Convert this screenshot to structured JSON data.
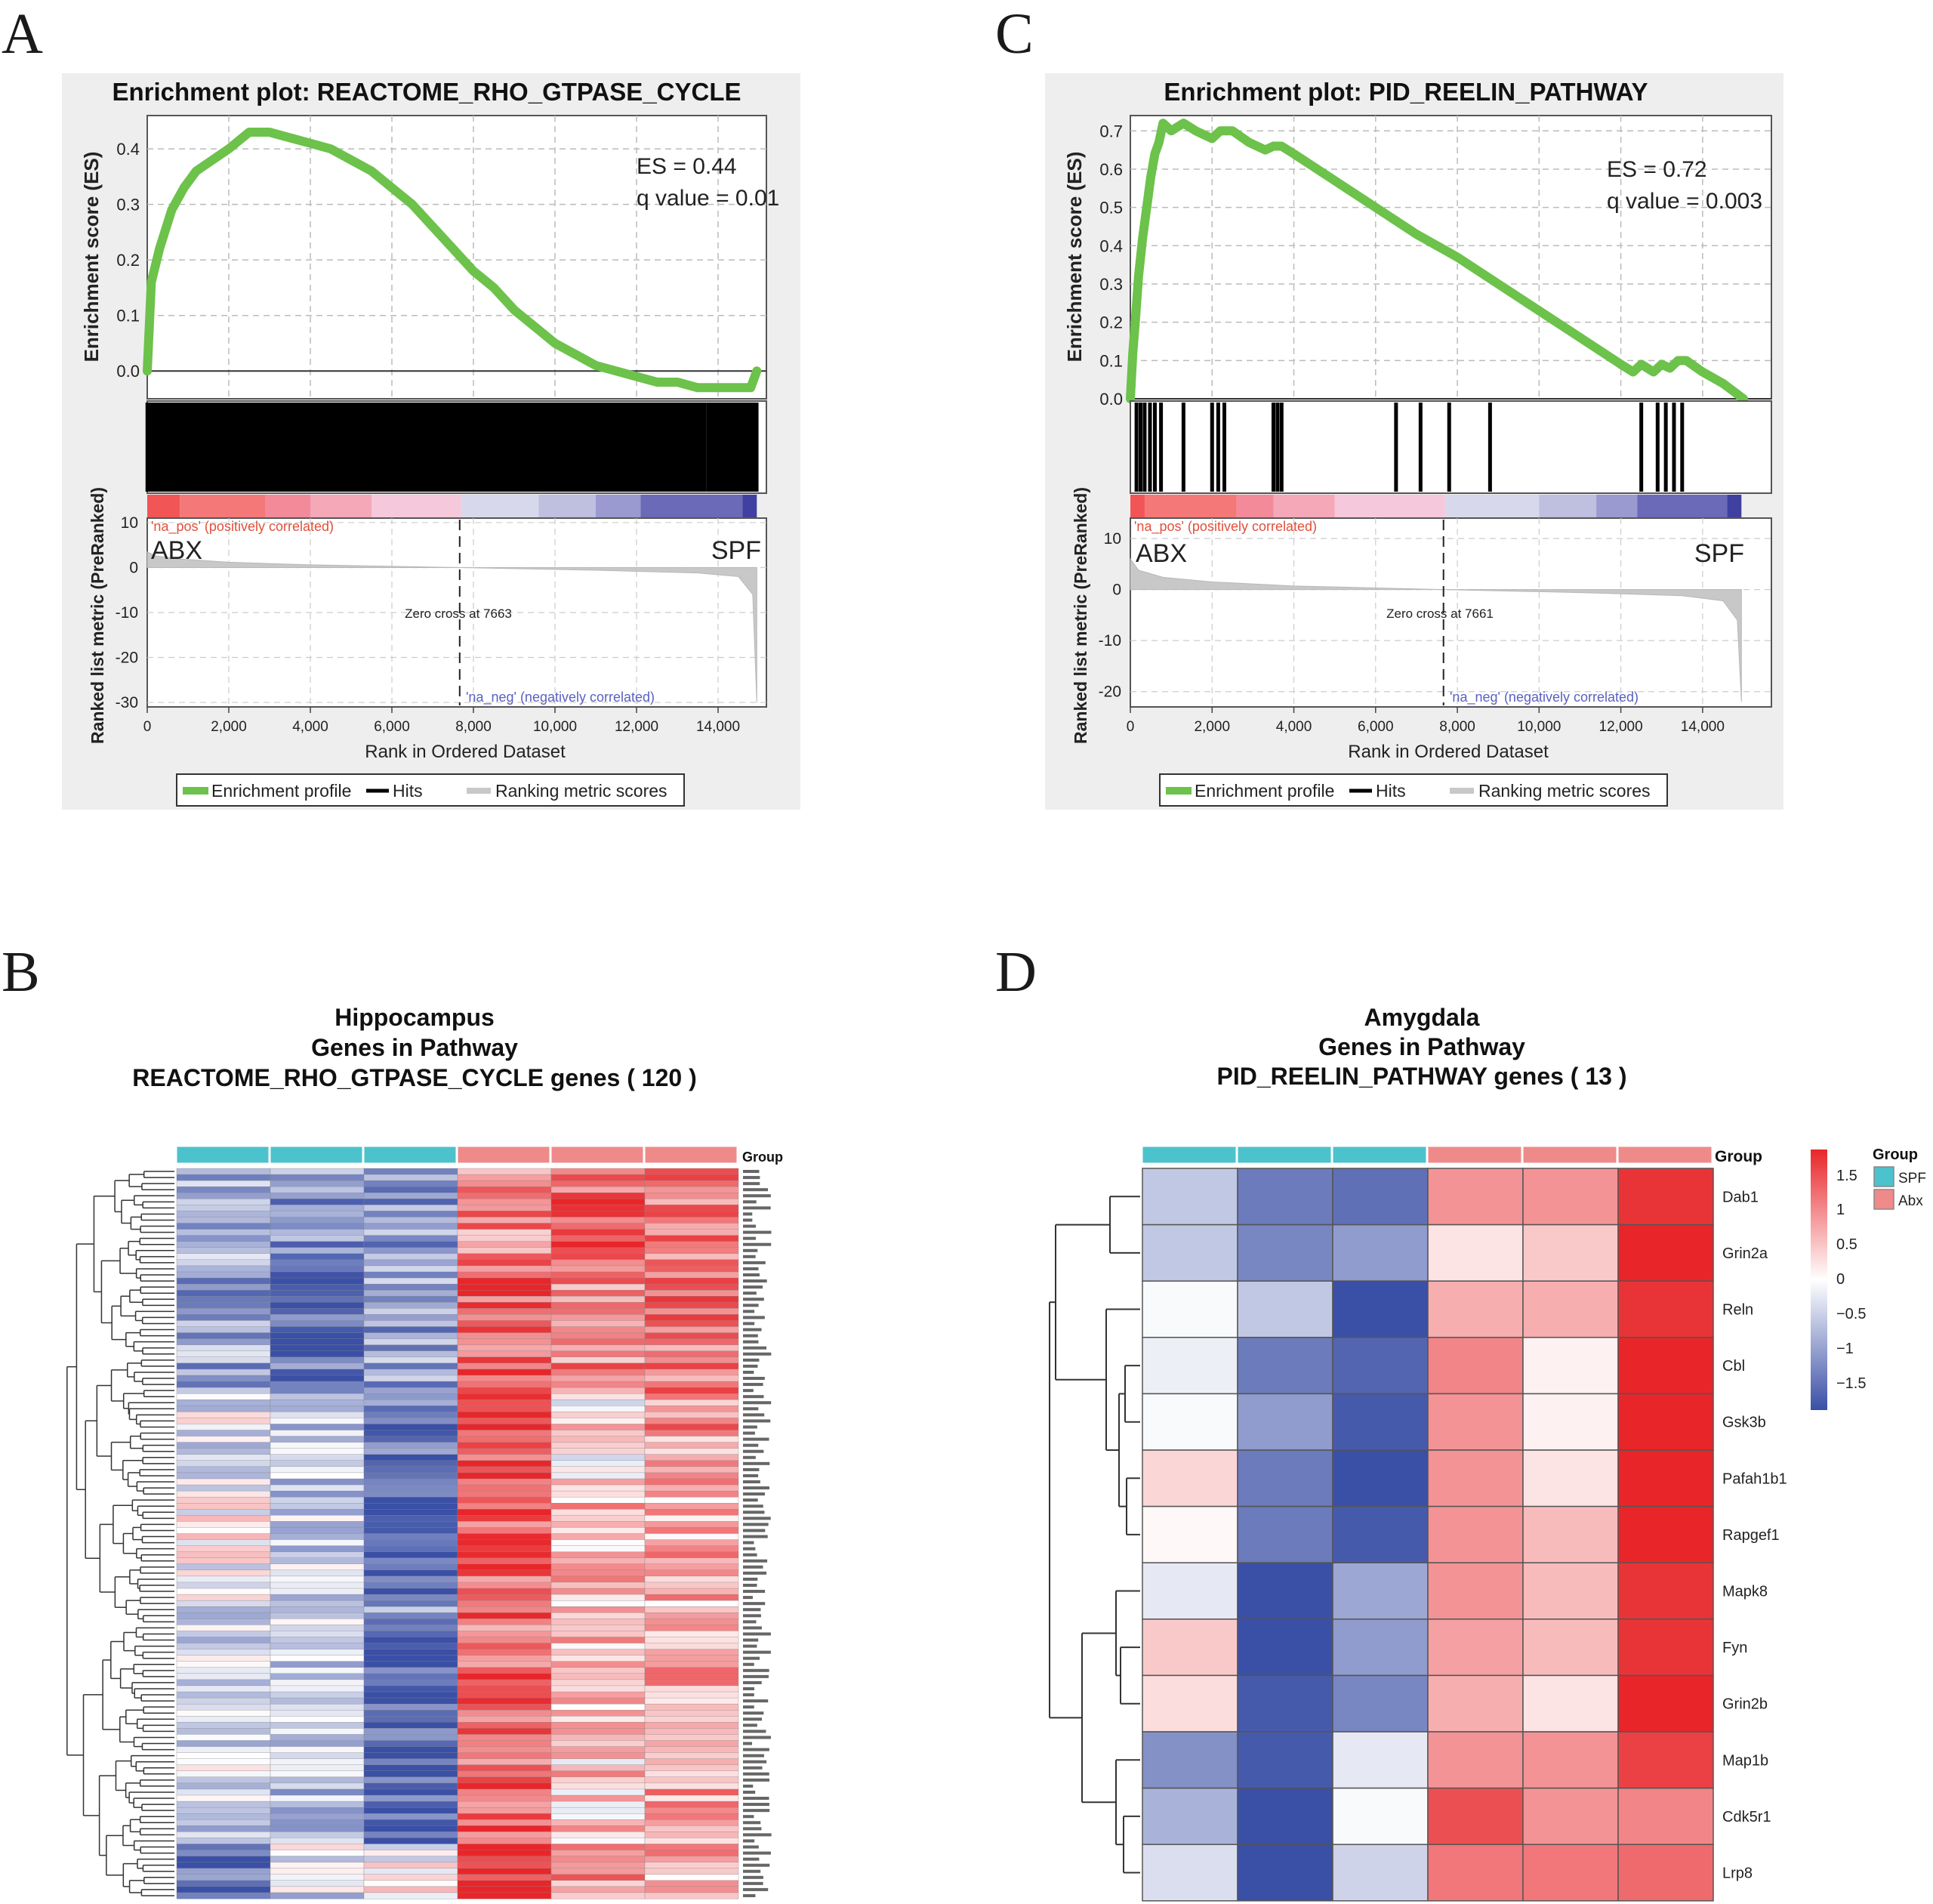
{
  "panels": {
    "A": {
      "letter": "A",
      "title": "Enrichment plot: REACTOME_RHO_GTPASE_CYCLE",
      "es_label": "ES = 0.44",
      "q_label": "q value = 0.01",
      "pos_label": "'na_pos' (positively correlated)",
      "neg_label": "'na_neg' (negatively correlated)",
      "left_group": "ABX",
      "right_group": "SPF",
      "zero_cross_label": "Zero cross at 7663",
      "es_ylabel": "Enrichment score (ES)",
      "rank_ylabel": "Ranked list metric (PreRanked)",
      "xlabel": "Rank in Ordered Dataset",
      "legend": [
        "Enrichment profile",
        "Hits",
        "Ranking metric scores"
      ]
    },
    "C": {
      "letter": "C",
      "title": "Enrichment plot: PID_REELIN_PATHWAY",
      "es_label": "ES = 0.72",
      "q_label": "q value = 0.003",
      "pos_label": "'na_pos' (positively correlated)",
      "neg_label": "'na_neg' (negatively correlated)",
      "left_group": "ABX",
      "right_group": "SPF",
      "zero_cross_label": "Zero cross at 7661",
      "es_ylabel": "Enrichment score (ES)",
      "rank_ylabel": "Ranked list metric (PreRanked)",
      "xlabel": "Rank in Ordered Dataset",
      "legend": [
        "Enrichment profile",
        "Hits",
        "Ranking metric scores"
      ]
    },
    "B": {
      "letter": "B",
      "title_lines": [
        "Hippocampus",
        "Genes  in Pathway",
        "REACTOME_RHO_GTPASE_CYCLE genes ( 120 )"
      ],
      "group_label": "Group"
    },
    "D": {
      "letter": "D",
      "title_lines": [
        "Amygdala",
        "Genes  in Pathway",
        "PID_REELIN_PATHWAY genes ( 13 )"
      ],
      "group_label": "Group",
      "legend_title": "Group",
      "legend_items": [
        "SPF",
        "Abx"
      ],
      "scale_labels": [
        "1.5",
        "1",
        "0.5",
        "0",
        "−0.5",
        "−1",
        "−1.5"
      ]
    }
  },
  "colors": {
    "enrichment_line": "#6cc24a",
    "hit": "#000000",
    "metric_fill": "#c8c8c8",
    "spf": "#4cc2cc",
    "abx": "#ef8a8a",
    "high": "#e8262a",
    "mid": "#ffffff",
    "low": "#3a4fa6",
    "pos_text": "#e0503a",
    "neg_text": "#5a62c0"
  },
  "chart_data": [
    {
      "id": "A",
      "type": "line",
      "title": "Enrichment plot: REACTOME_RHO_GTPASE_CYCLE",
      "xlabel": "Rank in Ordered Dataset",
      "ylabel": "Enrichment score (ES)",
      "xlim": [
        0,
        15000
      ],
      "ylim": [
        -0.05,
        0.46
      ],
      "yticks": [
        0.0,
        0.1,
        0.2,
        0.3,
        0.4
      ],
      "xticks": [
        0,
        2000,
        4000,
        6000,
        8000,
        10000,
        12000,
        14000
      ],
      "xtick_labels": [
        "0",
        "2,000",
        "4,000",
        "6,000",
        "8,000",
        "10,000",
        "12,000",
        "14,000"
      ],
      "es_curve": {
        "x": [
          0,
          100,
          300,
          600,
          900,
          1200,
          1600,
          2000,
          2500,
          3000,
          3500,
          4000,
          4500,
          5000,
          5500,
          6000,
          6500,
          7000,
          7500,
          8000,
          8500,
          9000,
          9500,
          10000,
          10500,
          11000,
          11500,
          12000,
          12500,
          13000,
          13500,
          14000,
          14500,
          14800,
          14950
        ],
        "y": [
          0.0,
          0.16,
          0.22,
          0.29,
          0.33,
          0.36,
          0.38,
          0.4,
          0.43,
          0.43,
          0.42,
          0.41,
          0.4,
          0.38,
          0.36,
          0.33,
          0.3,
          0.26,
          0.22,
          0.18,
          0.15,
          0.11,
          0.08,
          0.05,
          0.03,
          0.01,
          0.0,
          -0.01,
          -0.02,
          -0.02,
          -0.03,
          -0.03,
          -0.03,
          -0.03,
          0.0
        ]
      },
      "rank_metric": {
        "ylim": [
          -31,
          11
        ],
        "yticks": [
          10,
          0,
          -10,
          -20,
          -30
        ],
        "x": [
          0,
          200,
          800,
          2000,
          4000,
          7663,
          11000,
          13500,
          14500,
          14850,
          14950
        ],
        "y": [
          3.5,
          2.6,
          1.9,
          1.2,
          0.6,
          0.0,
          -0.6,
          -1.2,
          -2.0,
          -6.0,
          -30.0
        ]
      },
      "zero_cross": 7663,
      "color_bar": [
        "#f25555",
        "#f57878",
        "#f28a9a",
        "#f4a8b8",
        "#f6c8dc",
        "#d8d8ec",
        "#bfbfe0",
        "#9a9ad0",
        "#6a6ab8",
        "#4040a0"
      ],
      "color_bar_stops": [
        0,
        800,
        2900,
        4000,
        5500,
        7700,
        9600,
        11000,
        12100,
        14600,
        14950
      ],
      "hit_density": "dense"
    },
    {
      "id": "C",
      "type": "line",
      "title": "Enrichment plot: PID_REELIN_PATHWAY",
      "xlabel": "Rank in Ordered Dataset",
      "ylabel": "Enrichment score (ES)",
      "xlim": [
        0,
        15000
      ],
      "ylim": [
        0.0,
        0.74
      ],
      "yticks": [
        0.0,
        0.1,
        0.2,
        0.3,
        0.4,
        0.5,
        0.6,
        0.7
      ],
      "xticks": [
        0,
        2000,
        4000,
        6000,
        8000,
        10000,
        12000,
        14000
      ],
      "xtick_labels": [
        "0",
        "2,000",
        "4,000",
        "6,000",
        "8,000",
        "10,000",
        "12,000",
        "14,000"
      ],
      "es_curve": {
        "x": [
          0,
          60,
          120,
          200,
          300,
          400,
          500,
          600,
          700,
          800,
          1000,
          1300,
          1600,
          2000,
          2200,
          2500,
          2900,
          3300,
          3500,
          3700,
          4000,
          5000,
          6000,
          7000,
          8000,
          9000,
          10000,
          11000,
          12000,
          12300,
          12500,
          12800,
          13000,
          13200,
          13400,
          13600,
          14000,
          14500,
          15000
        ],
        "y": [
          0.0,
          0.12,
          0.2,
          0.32,
          0.42,
          0.5,
          0.58,
          0.64,
          0.67,
          0.72,
          0.7,
          0.72,
          0.7,
          0.68,
          0.7,
          0.7,
          0.67,
          0.65,
          0.66,
          0.66,
          0.64,
          0.57,
          0.5,
          0.43,
          0.37,
          0.3,
          0.23,
          0.16,
          0.09,
          0.07,
          0.09,
          0.07,
          0.09,
          0.08,
          0.1,
          0.1,
          0.07,
          0.04,
          0.0
        ]
      },
      "rank_metric": {
        "ylim": [
          -23,
          14
        ],
        "yticks": [
          10,
          0,
          -10,
          -20
        ],
        "x": [
          0,
          200,
          800,
          2000,
          4000,
          7661,
          11000,
          13500,
          14500,
          14850,
          14950
        ],
        "y": [
          6.0,
          3.8,
          2.4,
          1.5,
          0.7,
          0.0,
          -0.6,
          -1.2,
          -2.2,
          -6.0,
          -22.0
        ]
      },
      "zero_cross": 7661,
      "color_bar": [
        "#f25555",
        "#f57878",
        "#f28a9a",
        "#f4a8b8",
        "#f6c8dc",
        "#d8d8ec",
        "#bfbfe0",
        "#9a9ad0",
        "#6a6ab8",
        "#4040a0"
      ],
      "color_bar_stops": [
        0,
        350,
        2600,
        3500,
        5000,
        7700,
        10000,
        11400,
        12400,
        14600,
        14950
      ],
      "hits": [
        150,
        250,
        350,
        480,
        600,
        750,
        1300,
        2000,
        2150,
        2300,
        3500,
        3600,
        3700,
        6500,
        7100,
        7800,
        8800,
        12500,
        12900,
        13100,
        13300,
        13500
      ]
    },
    {
      "id": "B",
      "type": "heatmap",
      "title": "Hippocampus Genes in Pathway REACTOME_RHO_GTPASE_CYCLE genes ( 120 )",
      "columns": [
        "SPF",
        "SPF",
        "SPF",
        "Abx",
        "Abx",
        "Abx"
      ],
      "row_count": 120,
      "scale": [
        -1.5,
        1.5
      ]
    },
    {
      "id": "D",
      "type": "heatmap",
      "title": "Amygdala Genes in Pathway PID_REELIN_PATHWAY genes ( 13 )",
      "columns": [
        "SPF",
        "SPF",
        "SPF",
        "Abx",
        "Abx",
        "Abx"
      ],
      "rows": [
        "Dab1",
        "Grin2a",
        "Reln",
        "Cbl",
        "Gsk3b",
        "Pafah1b1",
        "Rapgef1",
        "Mapk8",
        "Fyn",
        "Grin2b",
        "Map1b",
        "Cdk5r1",
        "Lrp8"
      ],
      "values": [
        [
          -0.5,
          -1.2,
          -1.3,
          0.8,
          0.8,
          1.5
        ],
        [
          -0.5,
          -1.1,
          -0.9,
          0.2,
          0.4,
          1.75
        ],
        [
          -0.05,
          -0.5,
          -1.6,
          0.6,
          0.6,
          1.5
        ],
        [
          -0.15,
          -1.2,
          -1.4,
          0.9,
          0.1,
          1.6
        ],
        [
          -0.05,
          -0.9,
          -1.5,
          0.8,
          0.1,
          1.6
        ],
        [
          0.3,
          -1.2,
          -1.6,
          0.8,
          0.2,
          1.6
        ],
        [
          0.05,
          -1.2,
          -1.5,
          0.8,
          0.5,
          1.6
        ],
        [
          -0.2,
          -1.6,
          -0.8,
          0.8,
          0.5,
          1.5
        ],
        [
          0.4,
          -1.6,
          -0.9,
          0.7,
          0.5,
          1.5
        ],
        [
          0.25,
          -1.5,
          -1.1,
          0.6,
          0.2,
          1.7
        ],
        [
          -1.0,
          -1.5,
          -0.2,
          0.8,
          0.8,
          1.4
        ],
        [
          -0.7,
          -1.6,
          -0.05,
          1.3,
          0.8,
          0.9
        ],
        [
          -0.3,
          -1.7,
          -0.4,
          1.0,
          1.0,
          1.1
        ]
      ],
      "scale": [
        -1.5,
        1.5
      ]
    }
  ]
}
